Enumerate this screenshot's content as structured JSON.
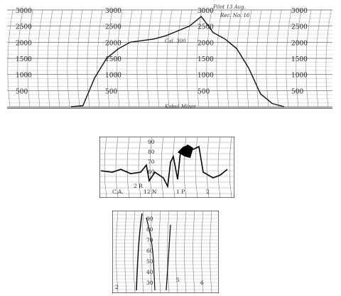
{
  "altitude_chart": {
    "scale_columns": [
      [
        "3000",
        "2500",
        "2000",
        "1500",
        "1000",
        "500"
      ],
      [
        "3000",
        "2500",
        "2000",
        "1500",
        "1000",
        "500"
      ],
      [
        "3000",
        "2500",
        "2000",
        "1500",
        "1000",
        "500"
      ],
      [
        "3000",
        "2500",
        "2000",
        "1500",
        "1000",
        "500"
      ]
    ],
    "annotations": [
      "Pilot 13 Aug.",
      "Cal. 300",
      "Rec. No. 16",
      "Kabul Mizer"
    ],
    "trace_values": [
      0,
      30,
      900,
      1500,
      1800,
      2000,
      2050,
      2100,
      2200,
      2350,
      2500,
      2800,
      2300,
      2100,
      1800,
      1200,
      400,
      100,
      0
    ]
  },
  "strip_middle": {
    "scale": [
      "90",
      "80",
      "70",
      "60"
    ],
    "annotations": [
      "C.A.",
      "2 R",
      "12 N",
      "1 P",
      "2"
    ]
  },
  "strip_bottom": {
    "scale": [
      "90",
      "80",
      "70",
      "60",
      "50",
      "40",
      "30"
    ],
    "annotations": [
      "2",
      "5",
      "6"
    ]
  }
}
